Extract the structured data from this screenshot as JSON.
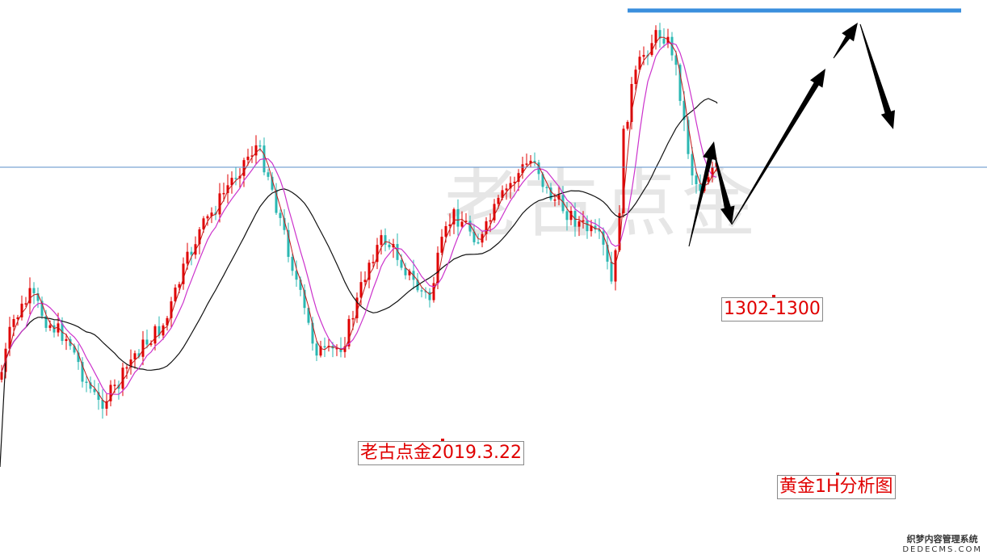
{
  "watermark": "老古点金",
  "labels": {
    "price_range": "1302-1300",
    "date": "老古点金2019.3.22",
    "title": "黄金1H分析图"
  },
  "site_mark": {
    "cn": "织梦内容管理系统",
    "en": "DEDECMS.COM"
  },
  "colors": {
    "bull": "#e00000",
    "bear": "#2ab7b2",
    "ma_fast": "#c21a1a",
    "ma_mid": "#cc33cc",
    "ma_slow": "#111111",
    "h_line": "#5b8fc9",
    "top_line": "#3a8fdd",
    "arrow": "#000000"
  },
  "chart_data": {
    "type": "candlestick",
    "series": [
      {
        "name": "",
        "role": "price"
      }
    ],
    "horizontal_lines": [
      "reference",
      "resistance-top"
    ],
    "projection_arrows": 4,
    "annotations": [
      "1302-1300",
      "老古点金2019.3.22",
      "黄金1H分析图"
    ]
  }
}
